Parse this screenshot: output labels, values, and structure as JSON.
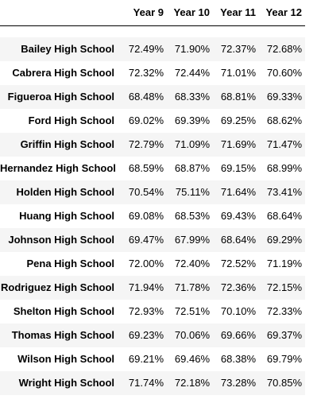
{
  "table": {
    "columns": [
      "Year 9",
      "Year 10",
      "Year 11",
      "Year 12"
    ],
    "rows": [
      {
        "school": "Bailey High School",
        "values": [
          "72.49%",
          "71.90%",
          "72.37%",
          "72.68%"
        ]
      },
      {
        "school": "Cabrera High School",
        "values": [
          "72.32%",
          "72.44%",
          "71.01%",
          "70.60%"
        ]
      },
      {
        "school": "Figueroa High School",
        "values": [
          "68.48%",
          "68.33%",
          "68.81%",
          "69.33%"
        ]
      },
      {
        "school": "Ford High School",
        "values": [
          "69.02%",
          "69.39%",
          "69.25%",
          "68.62%"
        ]
      },
      {
        "school": "Griffin High School",
        "values": [
          "72.79%",
          "71.09%",
          "71.69%",
          "71.47%"
        ]
      },
      {
        "school": "Hernandez High School",
        "values": [
          "68.59%",
          "68.87%",
          "69.15%",
          "68.99%"
        ]
      },
      {
        "school": "Holden High School",
        "values": [
          "70.54%",
          "75.11%",
          "71.64%",
          "73.41%"
        ]
      },
      {
        "school": "Huang High School",
        "values": [
          "69.08%",
          "68.53%",
          "69.43%",
          "68.64%"
        ]
      },
      {
        "school": "Johnson High School",
        "values": [
          "69.47%",
          "67.99%",
          "68.64%",
          "69.29%"
        ]
      },
      {
        "school": "Pena High School",
        "values": [
          "72.00%",
          "72.40%",
          "72.52%",
          "71.19%"
        ]
      },
      {
        "school": "Rodriguez High School",
        "values": [
          "71.94%",
          "71.78%",
          "72.36%",
          "72.15%"
        ]
      },
      {
        "school": "Shelton High School",
        "values": [
          "72.93%",
          "72.51%",
          "70.10%",
          "72.33%"
        ]
      },
      {
        "school": "Thomas High School",
        "values": [
          "69.23%",
          "70.06%",
          "69.66%",
          "69.37%"
        ]
      },
      {
        "school": "Wilson High School",
        "values": [
          "69.21%",
          "69.46%",
          "68.38%",
          "69.79%"
        ]
      },
      {
        "school": "Wright High School",
        "values": [
          "71.74%",
          "72.18%",
          "73.28%",
          "70.85%"
        ]
      }
    ]
  }
}
